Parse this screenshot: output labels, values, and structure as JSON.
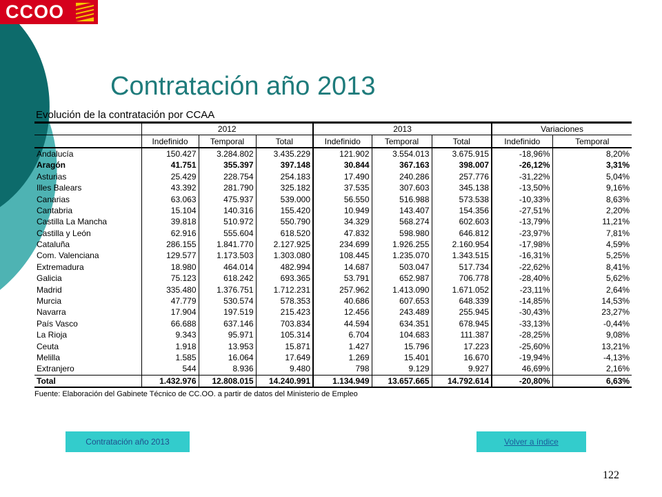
{
  "logo": {
    "text": "CCOO"
  },
  "title": "Contratación año 2013",
  "table": {
    "title": "Evolución de la contratación por CCAA",
    "groups": [
      "2012",
      "2013",
      "Variaciones"
    ],
    "subheaders": [
      "Indefinido",
      "Temporal",
      "Total",
      "Indefinido",
      "Temporal",
      "Total",
      "Indefinido",
      "Temporal"
    ],
    "rows": [
      {
        "region": "Andalucía",
        "bold": false,
        "values": [
          "150.427",
          "3.284.802",
          "3.435.229",
          "121.902",
          "3.554.013",
          "3.675.915",
          "-18,96%",
          "8,20%"
        ]
      },
      {
        "region": "Aragón",
        "bold": true,
        "values": [
          "41.751",
          "355.397",
          "397.148",
          "30.844",
          "367.163",
          "398.007",
          "-26,12%",
          "3,31%"
        ]
      },
      {
        "region": "Asturias",
        "bold": false,
        "values": [
          "25.429",
          "228.754",
          "254.183",
          "17.490",
          "240.286",
          "257.776",
          "-31,22%",
          "5,04%"
        ]
      },
      {
        "region": "Illes Balears",
        "bold": false,
        "values": [
          "43.392",
          "281.790",
          "325.182",
          "37.535",
          "307.603",
          "345.138",
          "-13,50%",
          "9,16%"
        ]
      },
      {
        "region": "Canarias",
        "bold": false,
        "values": [
          "63.063",
          "475.937",
          "539.000",
          "56.550",
          "516.988",
          "573.538",
          "-10,33%",
          "8,63%"
        ]
      },
      {
        "region": "Cantabria",
        "bold": false,
        "values": [
          "15.104",
          "140.316",
          "155.420",
          "10.949",
          "143.407",
          "154.356",
          "-27,51%",
          "2,20%"
        ]
      },
      {
        "region": "Castilla La Mancha",
        "bold": false,
        "values": [
          "39.818",
          "510.972",
          "550.790",
          "34.329",
          "568.274",
          "602.603",
          "-13,79%",
          "11,21%"
        ]
      },
      {
        "region": "Castilla y León",
        "bold": false,
        "values": [
          "62.916",
          "555.604",
          "618.520",
          "47.832",
          "598.980",
          "646.812",
          "-23,97%",
          "7,81%"
        ]
      },
      {
        "region": "Cataluña",
        "bold": false,
        "values": [
          "286.155",
          "1.841.770",
          "2.127.925",
          "234.699",
          "1.926.255",
          "2.160.954",
          "-17,98%",
          "4,59%"
        ]
      },
      {
        "region": "Com. Valenciana",
        "bold": false,
        "values": [
          "129.577",
          "1.173.503",
          "1.303.080",
          "108.445",
          "1.235.070",
          "1.343.515",
          "-16,31%",
          "5,25%"
        ]
      },
      {
        "region": "Extremadura",
        "bold": false,
        "values": [
          "18.980",
          "464.014",
          "482.994",
          "14.687",
          "503.047",
          "517.734",
          "-22,62%",
          "8,41%"
        ]
      },
      {
        "region": "Galicia",
        "bold": false,
        "values": [
          "75.123",
          "618.242",
          "693.365",
          "53.791",
          "652.987",
          "706.778",
          "-28,40%",
          "5,62%"
        ]
      },
      {
        "region": "Madrid",
        "bold": false,
        "values": [
          "335.480",
          "1.376.751",
          "1.712.231",
          "257.962",
          "1.413.090",
          "1.671.052",
          "-23,11%",
          "2,64%"
        ]
      },
      {
        "region": "Murcia",
        "bold": false,
        "values": [
          "47.779",
          "530.574",
          "578.353",
          "40.686",
          "607.653",
          "648.339",
          "-14,85%",
          "14,53%"
        ]
      },
      {
        "region": "Navarra",
        "bold": false,
        "values": [
          "17.904",
          "197.519",
          "215.423",
          "12.456",
          "243.489",
          "255.945",
          "-30,43%",
          "23,27%"
        ]
      },
      {
        "region": "País Vasco",
        "bold": false,
        "values": [
          "66.688",
          "637.146",
          "703.834",
          "44.594",
          "634.351",
          "678.945",
          "-33,13%",
          "-0,44%"
        ]
      },
      {
        "region": "La Rioja",
        "bold": false,
        "values": [
          "9.343",
          "95.971",
          "105.314",
          "6.704",
          "104.683",
          "111.387",
          "-28,25%",
          "9,08%"
        ]
      },
      {
        "region": "Ceuta",
        "bold": false,
        "values": [
          "1.918",
          "13.953",
          "15.871",
          "1.427",
          "15.796",
          "17.223",
          "-25,60%",
          "13,21%"
        ]
      },
      {
        "region": "Melilla",
        "bold": false,
        "values": [
          "1.585",
          "16.064",
          "17.649",
          "1.269",
          "15.401",
          "16.670",
          "-19,94%",
          "-4,13%"
        ]
      },
      {
        "region": "Extranjero",
        "bold": false,
        "values": [
          "544",
          "8.936",
          "9.480",
          "798",
          "9.129",
          "9.927",
          "46,69%",
          "2,16%"
        ]
      }
    ],
    "total": {
      "region": "Total",
      "values": [
        "1.432.976",
        "12.808.015",
        "14.240.991",
        "1.134.949",
        "13.657.665",
        "14.792.614",
        "-20,80%",
        "6,63%"
      ]
    },
    "source": "Fuente: Elaboración del Gabinete Técnico de CC.OO. a partir de datos del Ministerio de Empleo"
  },
  "nav": {
    "current_label": "Contratación año 2013",
    "back_label": "Volver a índice"
  },
  "page_number": "122",
  "colors": {
    "logo_red": "#d5001c",
    "title_teal": "#1e7b7b",
    "dark_teal": "#0d6b6b",
    "light_teal": "#4eb3b3",
    "button_cyan": "#33cccc"
  }
}
